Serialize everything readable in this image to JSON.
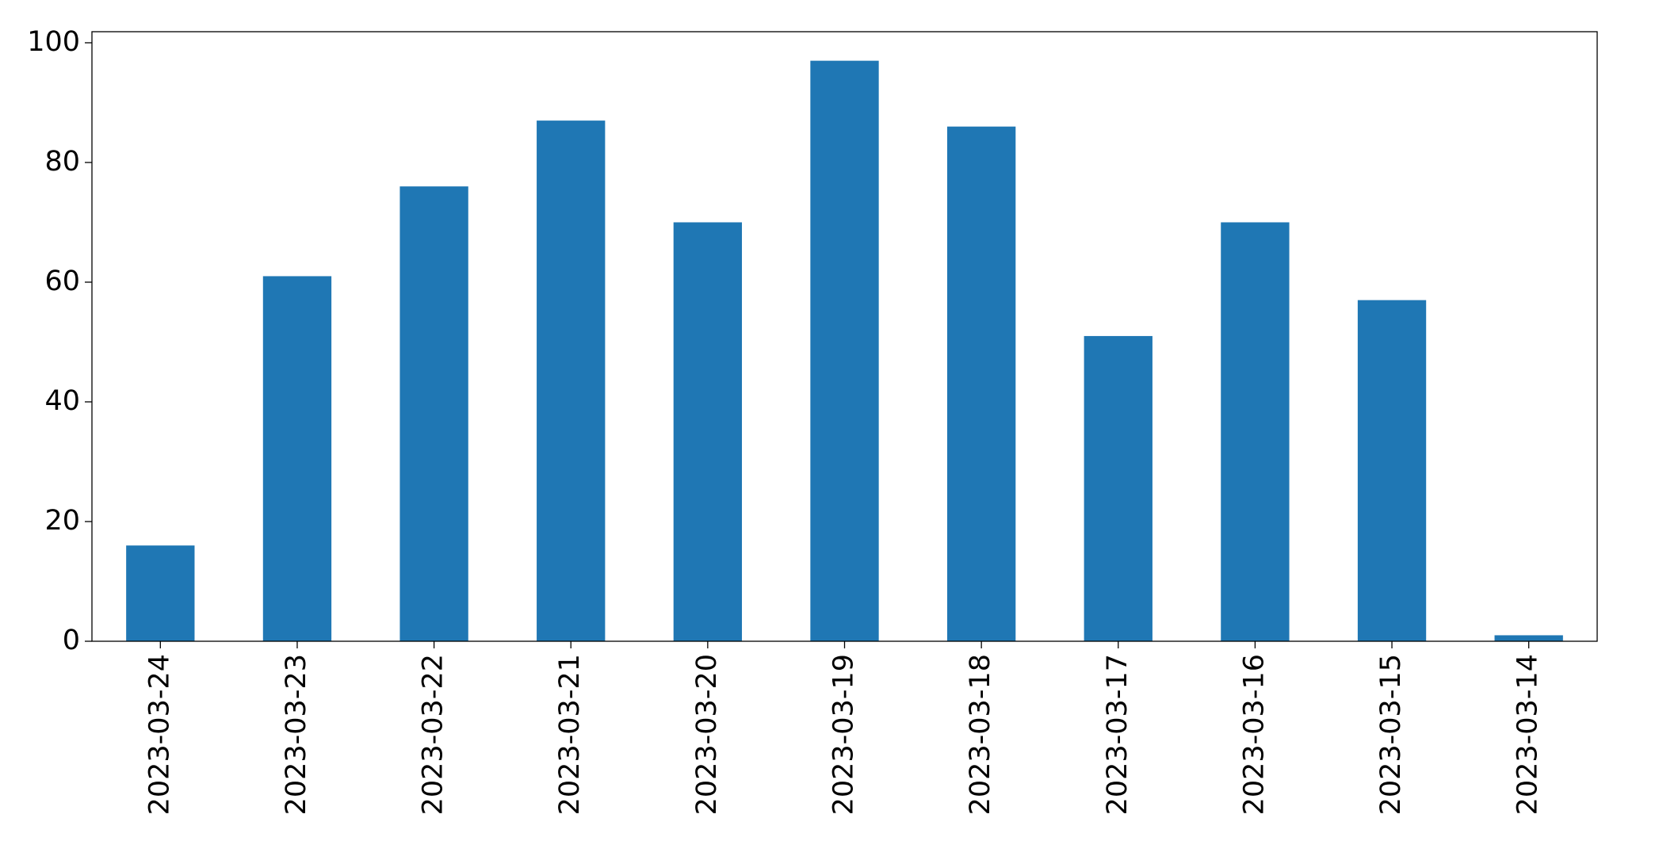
{
  "chart_data": {
    "type": "bar",
    "categories": [
      "2023-03-24",
      "2023-03-23",
      "2023-03-22",
      "2023-03-21",
      "2023-03-20",
      "2023-03-19",
      "2023-03-18",
      "2023-03-17",
      "2023-03-16",
      "2023-03-15",
      "2023-03-14"
    ],
    "values": [
      16,
      61,
      76,
      87,
      70,
      97,
      86,
      51,
      70,
      57,
      1
    ],
    "color": "#1f77b4",
    "ylim": [
      0,
      101.85
    ],
    "yticks": [
      0,
      20,
      40,
      60,
      80,
      100
    ],
    "grid": false
  }
}
